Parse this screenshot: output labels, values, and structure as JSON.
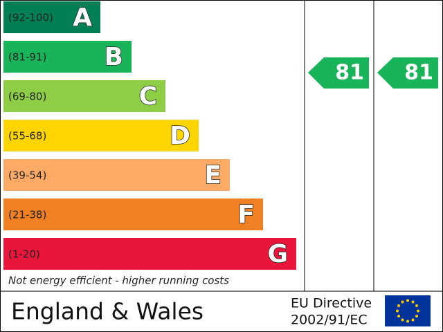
{
  "bands": [
    {
      "range": "(92-100)",
      "letter": "A",
      "color": "#008054"
    },
    {
      "range": "(81-91)",
      "letter": "B",
      "color": "#19b459"
    },
    {
      "range": "(69-80)",
      "letter": "C",
      "color": "#8dce46"
    },
    {
      "range": "(55-68)",
      "letter": "D",
      "color": "#ffd500"
    },
    {
      "range": "(39-54)",
      "letter": "E",
      "color": "#fcaa65"
    },
    {
      "range": "(21-38)",
      "letter": "F",
      "color": "#ef8023"
    },
    {
      "range": "(1-20)",
      "letter": "G",
      "color": "#e9153b"
    }
  ],
  "current": 81,
  "potential": 81,
  "footer_note": "Not energy efficient - higher running costs",
  "region": "England & Wales",
  "directive": {
    "line1": "EU Directive",
    "line2": "2002/91/EC"
  }
}
